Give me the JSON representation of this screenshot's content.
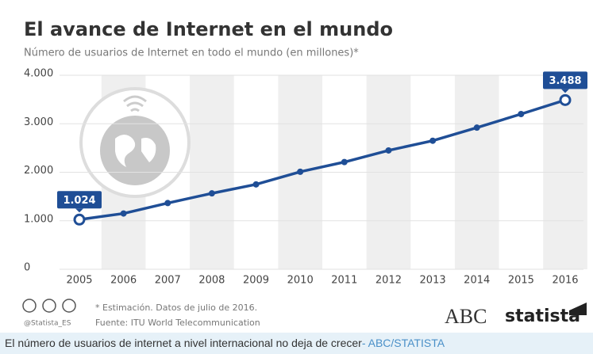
{
  "chart_data": {
    "type": "line",
    "title": "El avance de Internet en el mundo",
    "subtitle": "Número de usuarios de Internet en todo el mundo (en millones)*",
    "categories": [
      "2005",
      "2006",
      "2007",
      "2008",
      "2009",
      "2010",
      "2011",
      "2012",
      "2013",
      "2014",
      "2015",
      "2016"
    ],
    "series": [
      {
        "color": "#1f4e96",
        "values": [
          1024,
          1150,
          1365,
          1565,
          1750,
          2010,
          2210,
          2450,
          2650,
          2920,
          3200,
          3488
        ],
        "value_labels": [
          "1.024",
          null,
          null,
          null,
          null,
          null,
          null,
          null,
          null,
          null,
          null,
          "3.488"
        ]
      }
    ],
    "ylim": [
      0,
      4000
    ],
    "yticks": [
      0,
      {
        "value": 1000,
        "label": "1.000"
      },
      {
        "value": 2000,
        "label": "2.000"
      },
      {
        "value": 3000,
        "label": "3.000"
      },
      {
        "value": 4000,
        "label": "4.000"
      }
    ],
    "grid": true
  },
  "footer": {
    "handle": "@Statista_ES",
    "note": "* Estimación. Datos de julio de 2016.",
    "source": "Fuente: ITU World Telecommunication",
    "brand1": "ABC",
    "brand2": "statista"
  },
  "caption": {
    "text": "El número de usuarios de internet a nivel internacional no deja de crecer",
    "source": "- ABC/STATISTA"
  }
}
